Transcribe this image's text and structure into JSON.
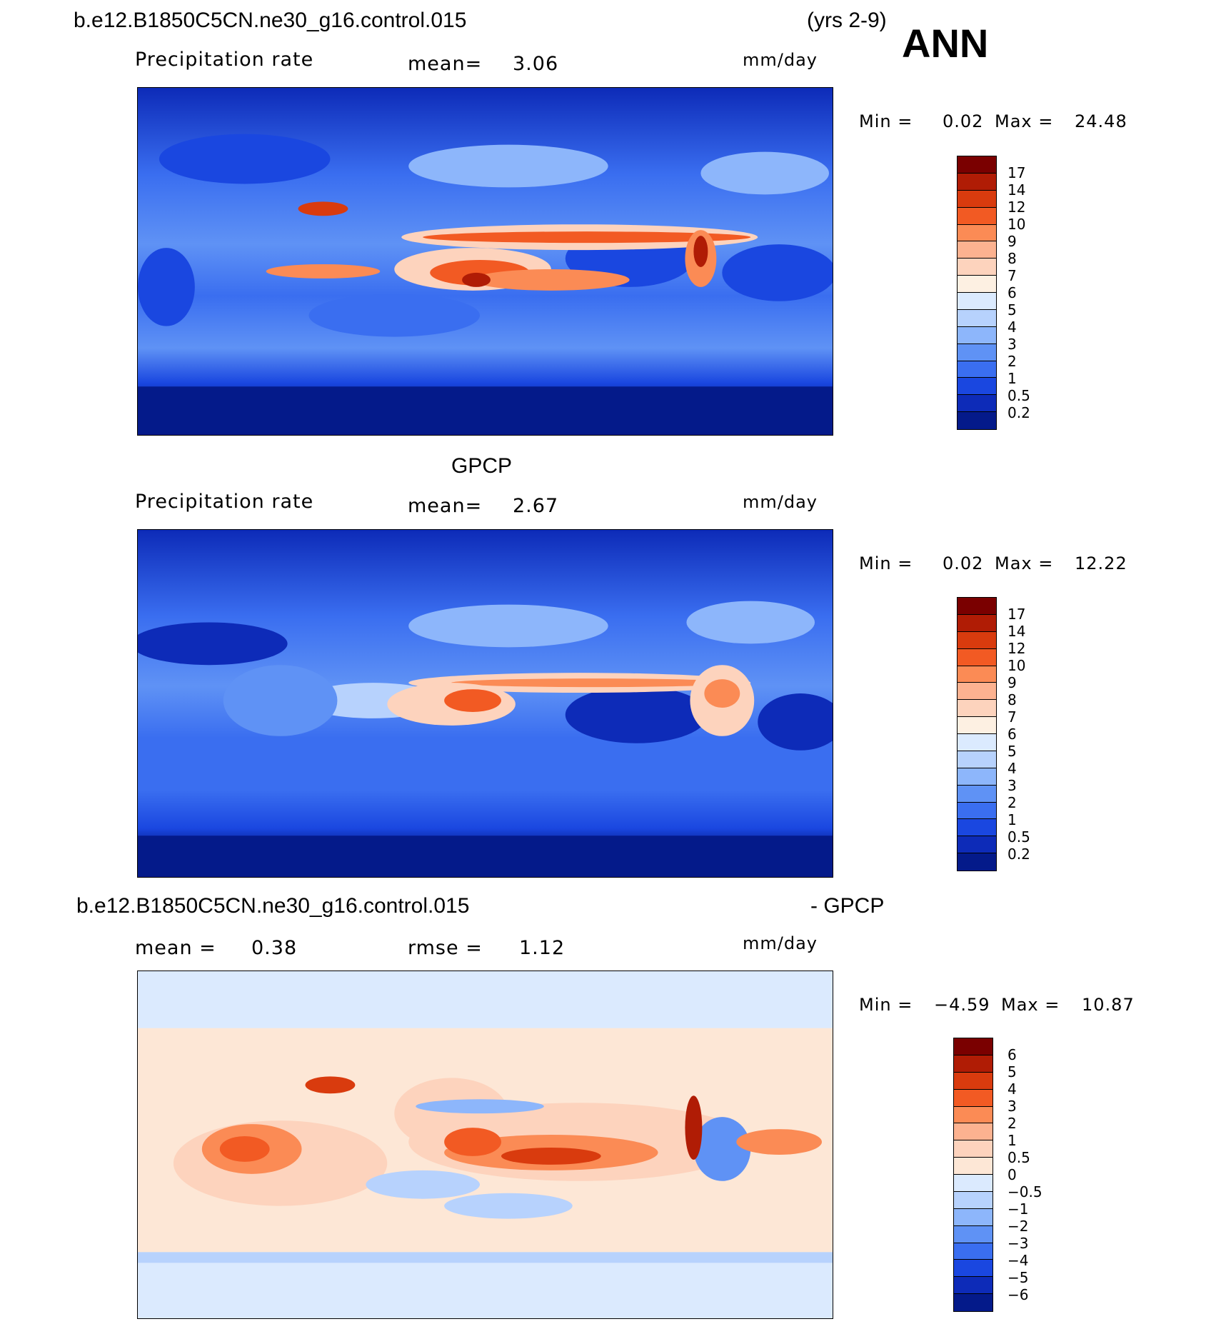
{
  "header": {
    "case": "b.e12.B1850C5CN.ne30_g16.control.015",
    "years": "(yrs 2-9)",
    "season": "ANN"
  },
  "panels": [
    {
      "title": "",
      "variable": "Precipitation  rate",
      "mean_label": "mean=",
      "mean_value": "3.06",
      "units": "mm/day",
      "min_label": "Min  =",
      "min_value": "0.02",
      "max_label": "Max  =",
      "max_value": "24.48",
      "colorbar": [
        "17",
        "14",
        "12",
        "10",
        "9",
        "8",
        "7",
        "6",
        "5",
        "4",
        "3",
        "2",
        "1",
        "0.5",
        "0.2"
      ]
    },
    {
      "title": "GPCP",
      "variable": "Precipitation  rate",
      "mean_label": "mean=",
      "mean_value": "2.67",
      "units": "mm/day",
      "min_label": "Min  =",
      "min_value": "0.02",
      "max_label": "Max  =",
      "max_value": "12.22",
      "colorbar": [
        "17",
        "14",
        "12",
        "10",
        "9",
        "8",
        "7",
        "6",
        "5",
        "4",
        "3",
        "2",
        "1",
        "0.5",
        "0.2"
      ]
    },
    {
      "title_left": "b.e12.B1850C5CN.ne30_g16.control.015",
      "title_right": "- GPCP",
      "mean_label": "mean  =",
      "mean_value": "0.38",
      "rmse_label": "rmse  =",
      "rmse_value": "1.12",
      "units": "mm/day",
      "min_label": "Min  =",
      "min_value": "−4.59",
      "max_label": "Max  =",
      "max_value": "10.87",
      "colorbar": [
        "6",
        "5",
        "4",
        "3",
        "2",
        "1",
        "0.5",
        "0",
        "−0.5",
        "−1",
        "−2",
        "−3",
        "−4",
        "−5",
        "−6"
      ]
    }
  ],
  "colors": {
    "precip_scale": [
      "#7a0000",
      "#b01c05",
      "#d93b0e",
      "#f25a23",
      "#fb8b55",
      "#fcb290",
      "#fdd3bd",
      "#fdf0e2",
      "#dbeafe",
      "#b7d2fd",
      "#8db6fb",
      "#5f92f5",
      "#3a6ef0",
      "#1a47e0",
      "#0d2bb8",
      "#041a8a"
    ],
    "diff_scale": [
      "#7a0000",
      "#b01c05",
      "#d93b0e",
      "#f25a23",
      "#fb8b55",
      "#fcb290",
      "#fdd3bd",
      "#fde7d6",
      "#dbeafe",
      "#b7d2fd",
      "#8db6fb",
      "#5f92f5",
      "#3a6ef0",
      "#1a47e0",
      "#0d2bb8",
      "#041a8a"
    ]
  }
}
